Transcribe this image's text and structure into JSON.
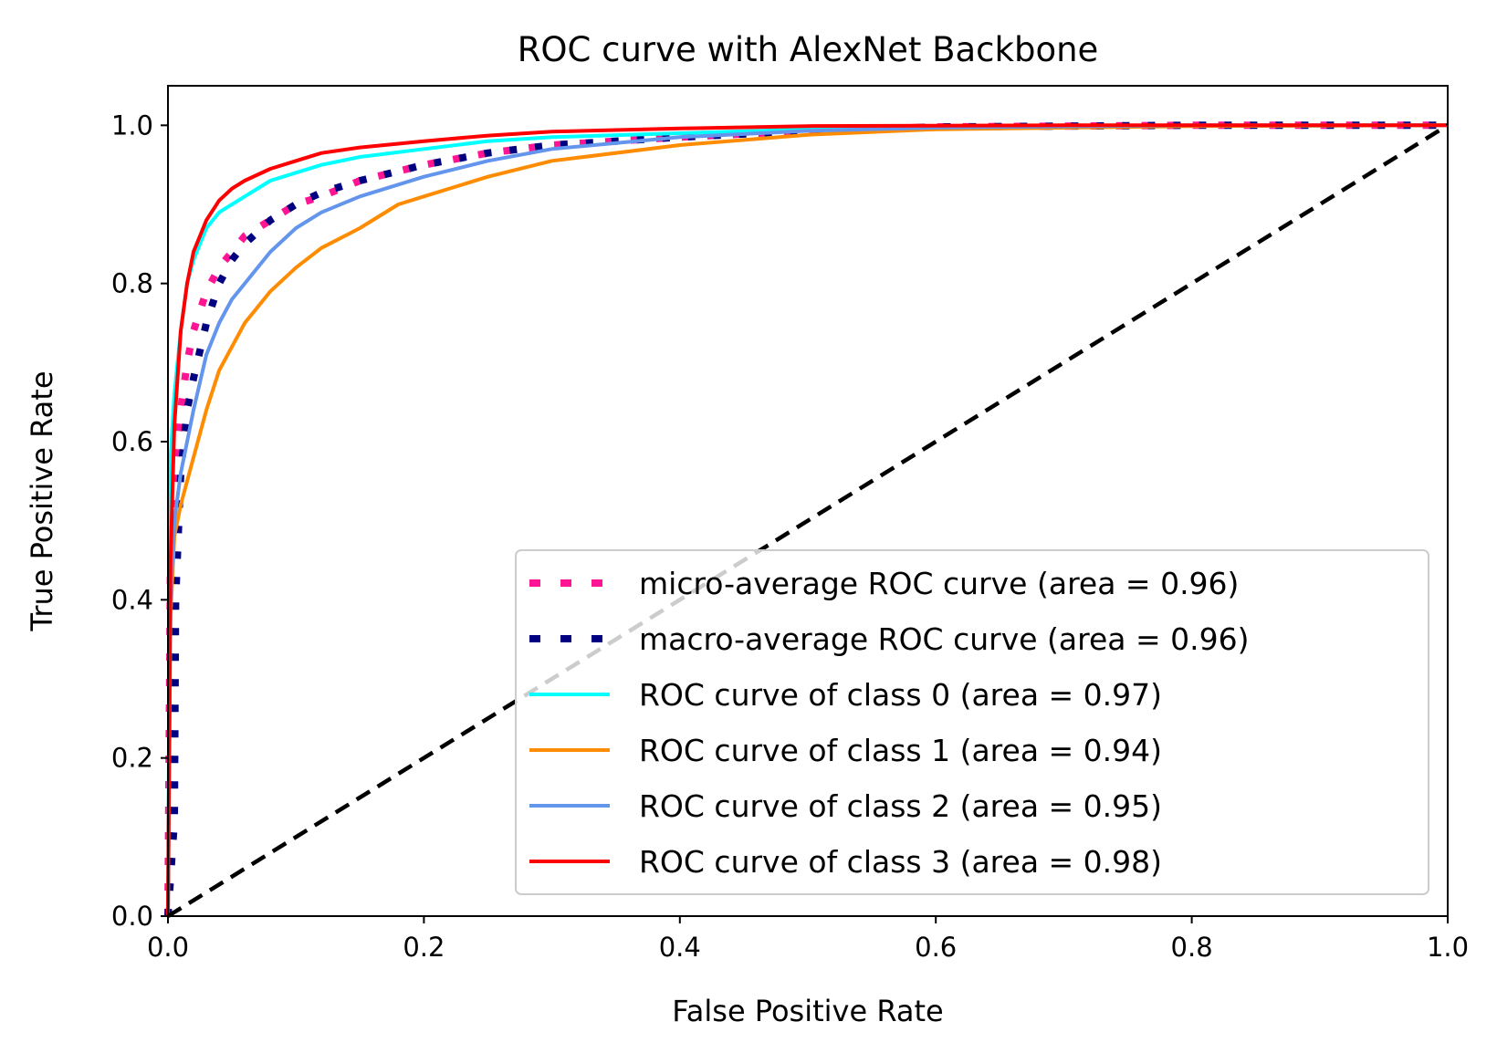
{
  "chart_data": {
    "type": "line",
    "title": "ROC curve with AlexNet Backbone",
    "xlabel": "False Positive Rate",
    "ylabel": "True Positive Rate",
    "xlim": [
      0.0,
      1.0
    ],
    "ylim": [
      0.0,
      1.05
    ],
    "x_ticks": [
      "0.0",
      "0.2",
      "0.4",
      "0.6",
      "0.8",
      "1.0"
    ],
    "y_ticks": [
      "0.0",
      "0.2",
      "0.4",
      "0.6",
      "0.8",
      "1.0"
    ],
    "grid": false,
    "legend_position": "lower right",
    "series": [
      {
        "name": "micro-average ROC curve (area = 0.96)",
        "color": "#ff1493",
        "style": "dotted",
        "x": [
          0.0,
          0.002,
          0.005,
          0.01,
          0.015,
          0.02,
          0.03,
          0.04,
          0.05,
          0.06,
          0.08,
          0.1,
          0.12,
          0.15,
          0.2,
          0.25,
          0.3,
          0.4,
          0.5,
          0.6,
          0.8,
          1.0
        ],
        "y": [
          0.0,
          0.45,
          0.55,
          0.64,
          0.7,
          0.74,
          0.79,
          0.82,
          0.84,
          0.86,
          0.88,
          0.9,
          0.91,
          0.93,
          0.95,
          0.965,
          0.975,
          0.985,
          0.993,
          0.998,
          1.0,
          1.0
        ]
      },
      {
        "name": "macro-average ROC curve (area = 0.96)",
        "color": "#000080",
        "style": "dotted",
        "x": [
          0.0,
          0.005,
          0.006,
          0.01,
          0.015,
          0.02,
          0.03,
          0.04,
          0.05,
          0.06,
          0.08,
          0.1,
          0.12,
          0.15,
          0.2,
          0.25,
          0.3,
          0.4,
          0.5,
          0.6,
          0.8,
          1.0
        ],
        "y": [
          0.0,
          0.12,
          0.4,
          0.56,
          0.64,
          0.68,
          0.75,
          0.8,
          0.83,
          0.85,
          0.88,
          0.9,
          0.915,
          0.93,
          0.95,
          0.965,
          0.975,
          0.985,
          0.993,
          0.998,
          1.0,
          1.0
        ]
      },
      {
        "name": "ROC curve of class 0 (area = 0.97)",
        "color": "#00ffff",
        "style": "solid",
        "x": [
          0.0,
          0.002,
          0.005,
          0.01,
          0.015,
          0.02,
          0.03,
          0.04,
          0.05,
          0.06,
          0.08,
          0.1,
          0.12,
          0.15,
          0.2,
          0.25,
          0.3,
          0.4,
          0.5,
          0.7,
          1.0
        ],
        "y": [
          0.0,
          0.58,
          0.66,
          0.74,
          0.8,
          0.83,
          0.87,
          0.89,
          0.9,
          0.91,
          0.93,
          0.94,
          0.95,
          0.96,
          0.97,
          0.98,
          0.985,
          0.99,
          0.995,
          0.999,
          1.0
        ]
      },
      {
        "name": "ROC curve of class 1 (area = 0.94)",
        "color": "#ff8c00",
        "style": "solid",
        "x": [
          0.0,
          0.002,
          0.005,
          0.01,
          0.02,
          0.03,
          0.04,
          0.05,
          0.06,
          0.07,
          0.08,
          0.1,
          0.12,
          0.15,
          0.18,
          0.2,
          0.25,
          0.3,
          0.4,
          0.5,
          0.6,
          0.8,
          1.0
        ],
        "y": [
          0.0,
          0.38,
          0.48,
          0.52,
          0.58,
          0.64,
          0.69,
          0.72,
          0.75,
          0.77,
          0.79,
          0.82,
          0.845,
          0.87,
          0.9,
          0.91,
          0.935,
          0.955,
          0.975,
          0.988,
          0.995,
          0.999,
          1.0
        ]
      },
      {
        "name": "ROC curve of class 2 (area = 0.95)",
        "color": "#6495ed",
        "style": "solid",
        "x": [
          0.0,
          0.002,
          0.005,
          0.01,
          0.02,
          0.03,
          0.04,
          0.05,
          0.06,
          0.08,
          0.1,
          0.12,
          0.15,
          0.2,
          0.25,
          0.3,
          0.4,
          0.5,
          0.6,
          0.8,
          1.0
        ],
        "y": [
          0.0,
          0.4,
          0.5,
          0.56,
          0.64,
          0.71,
          0.75,
          0.78,
          0.8,
          0.84,
          0.87,
          0.89,
          0.91,
          0.935,
          0.955,
          0.97,
          0.985,
          0.993,
          0.997,
          1.0,
          1.0
        ]
      },
      {
        "name": "ROC curve of class 3 (area = 0.98)",
        "color": "#ff0000",
        "style": "solid",
        "x": [
          0.0,
          0.002,
          0.005,
          0.01,
          0.015,
          0.02,
          0.03,
          0.04,
          0.05,
          0.06,
          0.08,
          0.1,
          0.12,
          0.15,
          0.2,
          0.25,
          0.3,
          0.4,
          0.5,
          0.7,
          1.0
        ],
        "y": [
          0.0,
          0.45,
          0.62,
          0.74,
          0.8,
          0.84,
          0.88,
          0.905,
          0.92,
          0.93,
          0.945,
          0.955,
          0.965,
          0.972,
          0.98,
          0.987,
          0.992,
          0.996,
          0.999,
          1.0,
          1.0
        ]
      },
      {
        "color": "#000000",
        "style": "dashed",
        "x": [
          0.0,
          1.0
        ],
        "y": [
          0.0,
          1.0
        ]
      }
    ]
  }
}
